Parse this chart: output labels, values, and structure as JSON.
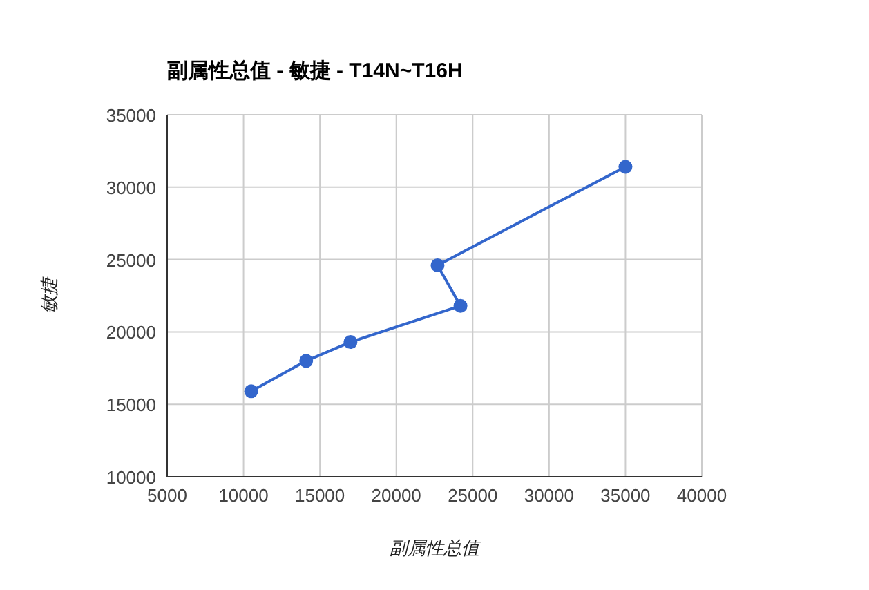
{
  "chart_data": {
    "type": "line",
    "title": "副属性总值 - 敏捷 - T14N~T16H",
    "xlabel": "副属性总值",
    "ylabel": "敏捷",
    "x": [
      10500,
      14100,
      17000,
      24200,
      22700,
      35000
    ],
    "values": [
      15900,
      18000,
      19300,
      21800,
      24600,
      31400
    ],
    "color": "#3366cc",
    "marker": "circle",
    "line_style": "solid",
    "grid": true,
    "xlim": [
      5000,
      40000
    ],
    "xticks": [
      5000,
      10000,
      15000,
      20000,
      25000,
      30000,
      35000,
      40000
    ],
    "ylim": [
      10000,
      35000
    ],
    "yticks": [
      10000,
      15000,
      20000,
      25000,
      30000,
      35000
    ]
  }
}
